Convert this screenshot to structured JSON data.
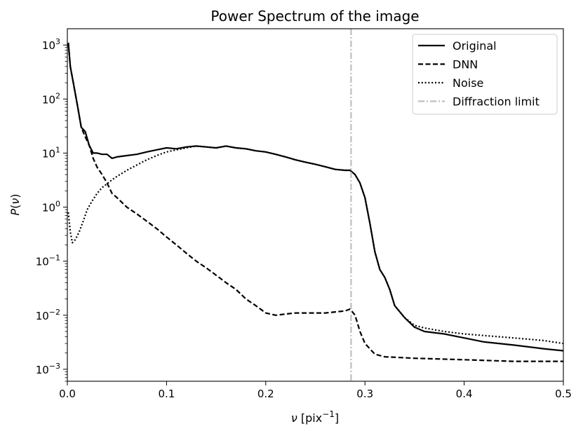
{
  "chart_data": {
    "type": "line",
    "title": "Power Spectrum of the image",
    "xlabel": "ν [pix⁻¹]",
    "ylabel": "P(ν)",
    "xlim": [
      0,
      0.5
    ],
    "ylim": [
      0.0006,
      2000
    ],
    "yscale": "log",
    "grid": false,
    "legend_position": "top-right",
    "x_ticks": [
      "0.0",
      "0.1",
      "0.2",
      "0.3",
      "0.4",
      "0.5"
    ],
    "y_ticks": [
      {
        "base": "10",
        "exp": "3"
      },
      {
        "base": "10",
        "exp": "2"
      },
      {
        "base": "10",
        "exp": "1"
      },
      {
        "base": "10",
        "exp": "0"
      },
      {
        "base": "10",
        "exp": "−1"
      },
      {
        "base": "10",
        "exp": "−2"
      },
      {
        "base": "10",
        "exp": "−3"
      }
    ],
    "series": [
      {
        "name": "Original",
        "style": "solid",
        "color": "#000000",
        "x": [
          0.001,
          0.003,
          0.006,
          0.01,
          0.014,
          0.018,
          0.022,
          0.026,
          0.03,
          0.035,
          0.04,
          0.045,
          0.05,
          0.06,
          0.07,
          0.08,
          0.09,
          0.1,
          0.11,
          0.12,
          0.13,
          0.14,
          0.15,
          0.16,
          0.17,
          0.18,
          0.19,
          0.2,
          0.21,
          0.22,
          0.23,
          0.24,
          0.25,
          0.26,
          0.27,
          0.28,
          0.285,
          0.29,
          0.295,
          0.3,
          0.305,
          0.31,
          0.315,
          0.32,
          0.325,
          0.33,
          0.34,
          0.35,
          0.36,
          0.38,
          0.4,
          0.42,
          0.45,
          0.48,
          0.5
        ],
        "y": [
          1100,
          400,
          200,
          80,
          30,
          25,
          14,
          10,
          10,
          9.5,
          9.5,
          8,
          8.5,
          9,
          9.5,
          10.5,
          11.5,
          12.5,
          12,
          13,
          13.5,
          13,
          12.5,
          13.5,
          12.5,
          12,
          11,
          10.5,
          9.5,
          8.5,
          7.5,
          6.8,
          6.2,
          5.6,
          5.0,
          4.8,
          4.8,
          4.0,
          2.8,
          1.5,
          0.5,
          0.15,
          0.07,
          0.05,
          0.03,
          0.015,
          0.009,
          0.006,
          0.005,
          0.0045,
          0.0038,
          0.0032,
          0.0028,
          0.0024,
          0.0022
        ]
      },
      {
        "name": "DNN",
        "style": "dashed",
        "color": "#000000",
        "x": [
          0.001,
          0.003,
          0.006,
          0.01,
          0.014,
          0.018,
          0.022,
          0.026,
          0.03,
          0.035,
          0.04,
          0.045,
          0.05,
          0.06,
          0.07,
          0.08,
          0.09,
          0.1,
          0.11,
          0.12,
          0.13,
          0.14,
          0.15,
          0.16,
          0.17,
          0.18,
          0.19,
          0.2,
          0.21,
          0.22,
          0.23,
          0.24,
          0.25,
          0.26,
          0.27,
          0.28,
          0.285,
          0.29,
          0.295,
          0.3,
          0.31,
          0.32,
          0.35,
          0.4,
          0.45,
          0.5
        ],
        "y": [
          1100,
          400,
          200,
          80,
          30,
          20,
          14,
          8,
          5.5,
          4,
          2.8,
          1.8,
          1.5,
          1.0,
          0.75,
          0.55,
          0.4,
          0.28,
          0.2,
          0.14,
          0.1,
          0.075,
          0.055,
          0.04,
          0.03,
          0.02,
          0.015,
          0.011,
          0.01,
          0.0105,
          0.011,
          0.011,
          0.011,
          0.011,
          0.0115,
          0.012,
          0.013,
          0.01,
          0.005,
          0.003,
          0.0019,
          0.0017,
          0.0016,
          0.0015,
          0.0014,
          0.0014
        ]
      },
      {
        "name": "Noise",
        "style": "dotted",
        "color": "#000000",
        "x": [
          0.001,
          0.003,
          0.005,
          0.008,
          0.012,
          0.016,
          0.02,
          0.025,
          0.03,
          0.035,
          0.04,
          0.045,
          0.05,
          0.06,
          0.07,
          0.08,
          0.09,
          0.1,
          0.11,
          0.12,
          0.13,
          0.14,
          0.15,
          0.16,
          0.17,
          0.18,
          0.19,
          0.2,
          0.21,
          0.22,
          0.23,
          0.24,
          0.25,
          0.26,
          0.27,
          0.28,
          0.285,
          0.29,
          0.295,
          0.3,
          0.305,
          0.31,
          0.315,
          0.32,
          0.325,
          0.33,
          0.34,
          0.35,
          0.36,
          0.38,
          0.4,
          0.42,
          0.45,
          0.48,
          0.5
        ],
        "y": [
          0.8,
          0.35,
          0.22,
          0.25,
          0.35,
          0.55,
          0.9,
          1.3,
          1.8,
          2.3,
          2.7,
          3.2,
          3.7,
          4.8,
          6,
          7.5,
          9,
          10.5,
          11.5,
          12.5,
          13.5,
          13,
          12.5,
          13.5,
          12.5,
          12,
          11,
          10.5,
          9.5,
          8.5,
          7.5,
          6.8,
          6.2,
          5.6,
          5.0,
          4.8,
          4.8,
          4.0,
          2.8,
          1.5,
          0.5,
          0.15,
          0.07,
          0.05,
          0.03,
          0.015,
          0.009,
          0.0065,
          0.0058,
          0.005,
          0.0045,
          0.0042,
          0.0038,
          0.0034,
          0.003
        ]
      },
      {
        "name": "Diffraction limit",
        "style": "dashdot",
        "color": "#bfbfbf",
        "vertical_x": 0.286
      }
    ]
  }
}
